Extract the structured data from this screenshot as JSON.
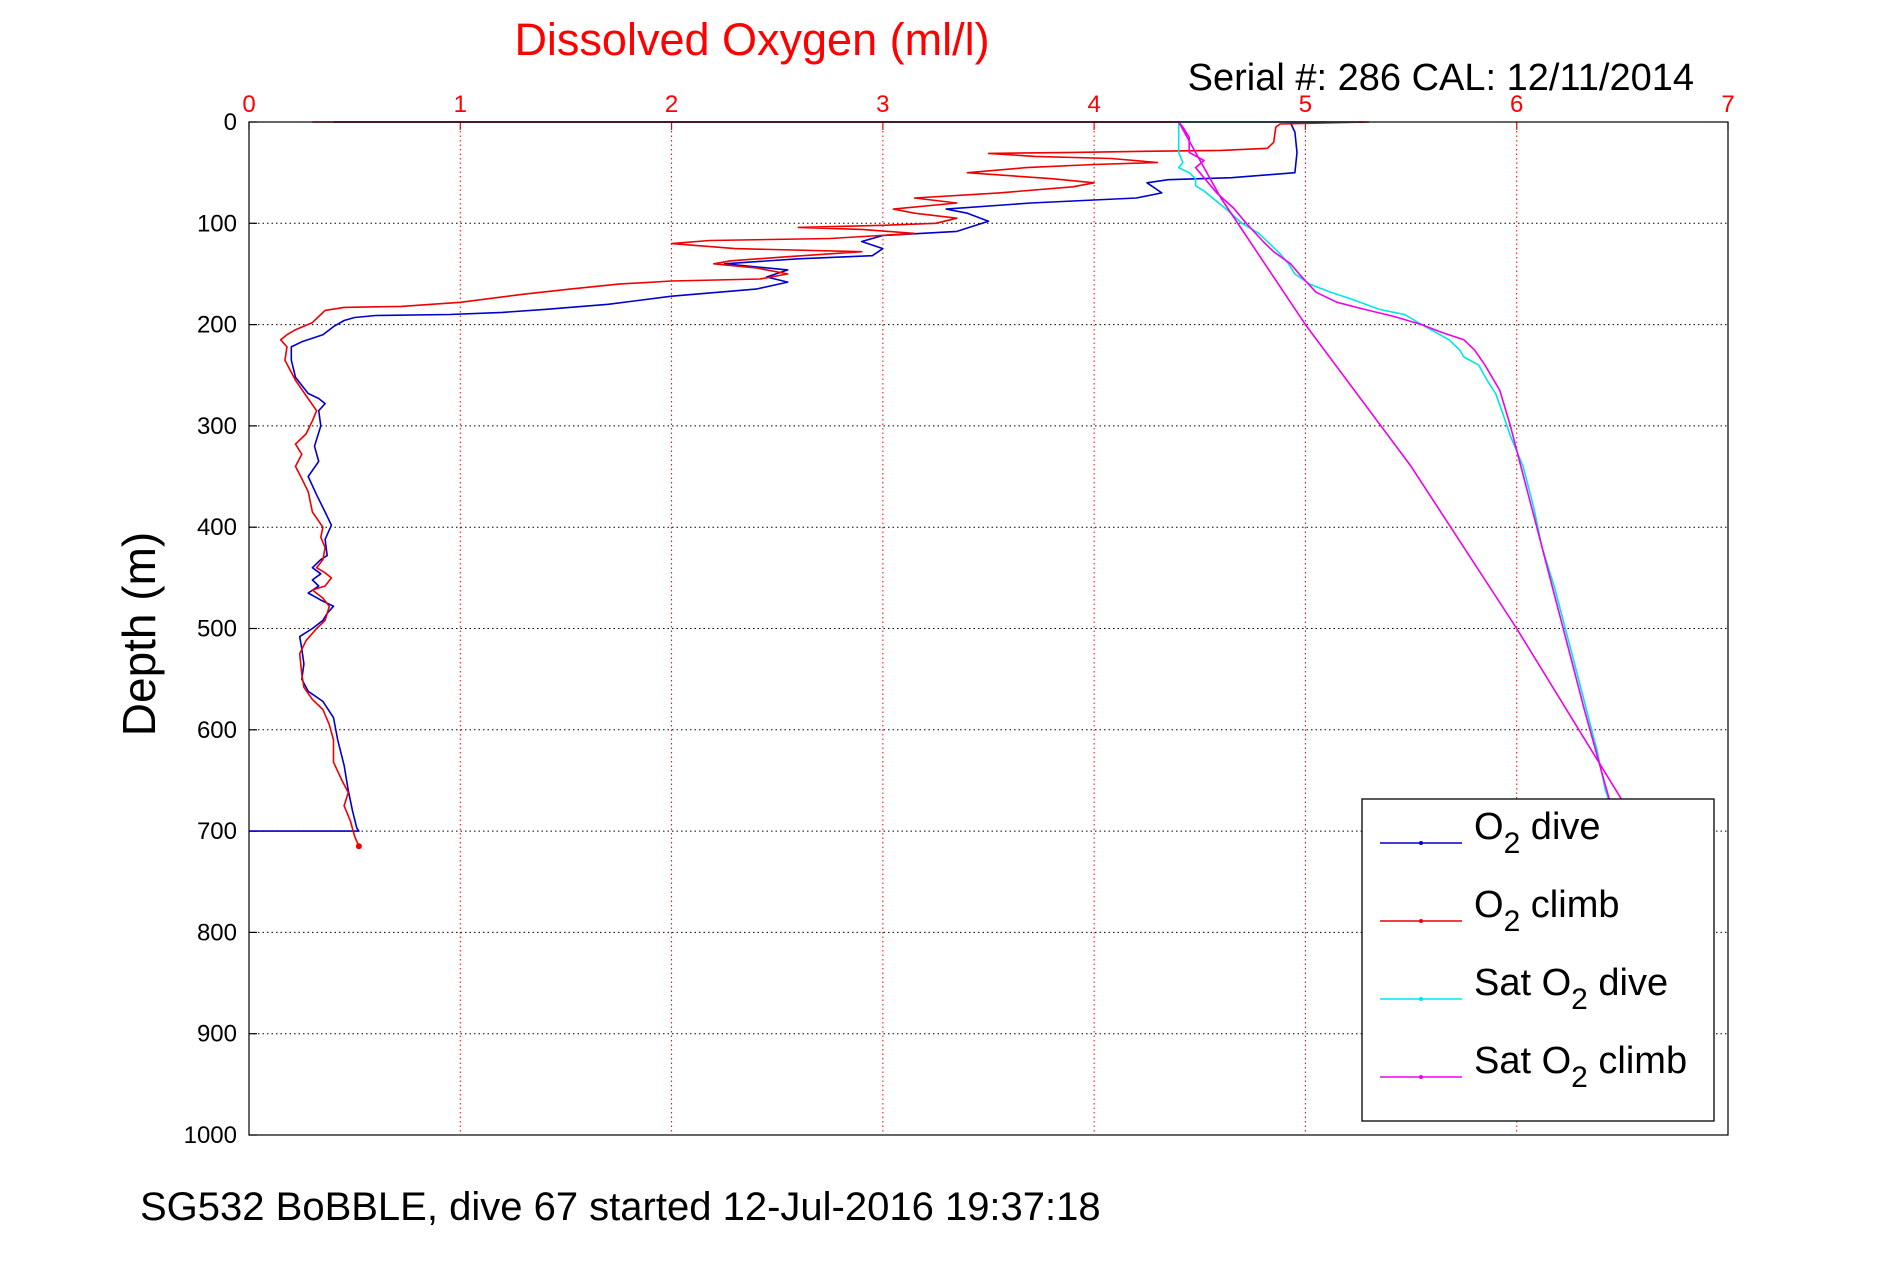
{
  "chart_data": {
    "type": "line",
    "title": "Dissolved Oxygen (ml/l)",
    "subtitle": "Serial #: 286  CAL: 12/11/2014",
    "xlabel": "",
    "ylabel": "Depth (m)",
    "xlim": [
      0,
      7
    ],
    "ylim": [
      0,
      1000
    ],
    "y_reversed": true,
    "x_axis_position": "top",
    "xticks": [
      "0",
      "1",
      "2",
      "3",
      "4",
      "5",
      "6",
      "7"
    ],
    "yticks": [
      "0",
      "100",
      "200",
      "300",
      "400",
      "500",
      "600",
      "700",
      "800",
      "900",
      "1000"
    ],
    "grid": true,
    "legend_placement": "bottom-right",
    "colors": {
      "title": "#ff0000",
      "o2_dive": "#0000cc",
      "o2_climb": "#ee0000",
      "sat_dive": "#00e5e5",
      "sat_climb": "#ee00ee",
      "grid_x": "#ff0000",
      "grid_y": "#000000"
    },
    "series": [
      {
        "name": "O2 dive",
        "legend_label": [
          "O",
          "2",
          " dive"
        ],
        "color": "#0000cc",
        "points": [
          [
            0.4,
            0
          ],
          [
            5.1,
            0
          ],
          [
            4.93,
            1
          ],
          [
            4.95,
            10
          ],
          [
            4.96,
            30
          ],
          [
            4.95,
            50
          ],
          [
            4.65,
            55
          ],
          [
            4.35,
            57
          ],
          [
            4.25,
            60
          ],
          [
            4.32,
            70
          ],
          [
            4.2,
            75
          ],
          [
            3.7,
            80
          ],
          [
            3.3,
            86
          ],
          [
            3.4,
            90
          ],
          [
            3.5,
            98
          ],
          [
            3.35,
            108
          ],
          [
            3.0,
            112
          ],
          [
            2.9,
            118
          ],
          [
            3.0,
            125
          ],
          [
            2.95,
            132
          ],
          [
            2.6,
            135
          ],
          [
            2.25,
            140
          ],
          [
            2.55,
            146
          ],
          [
            2.45,
            153
          ],
          [
            2.55,
            158
          ],
          [
            2.4,
            165
          ],
          [
            2.0,
            172
          ],
          [
            1.7,
            180
          ],
          [
            1.4,
            185
          ],
          [
            1.2,
            188
          ],
          [
            0.95,
            190
          ],
          [
            0.6,
            191
          ],
          [
            0.5,
            193
          ],
          [
            0.45,
            196
          ],
          [
            0.4,
            202
          ],
          [
            0.35,
            210
          ],
          [
            0.25,
            217
          ],
          [
            0.2,
            222
          ],
          [
            0.2,
            235
          ],
          [
            0.22,
            252
          ],
          [
            0.28,
            268
          ],
          [
            0.33,
            273
          ],
          [
            0.36,
            278
          ],
          [
            0.33,
            285
          ],
          [
            0.34,
            300
          ],
          [
            0.31,
            320
          ],
          [
            0.33,
            335
          ],
          [
            0.28,
            350
          ],
          [
            0.32,
            368
          ],
          [
            0.36,
            385
          ],
          [
            0.39,
            398
          ],
          [
            0.36,
            412
          ],
          [
            0.37,
            428
          ],
          [
            0.34,
            432
          ],
          [
            0.3,
            440
          ],
          [
            0.34,
            446
          ],
          [
            0.3,
            452
          ],
          [
            0.33,
            458
          ],
          [
            0.28,
            465
          ],
          [
            0.34,
            472
          ],
          [
            0.4,
            478
          ],
          [
            0.37,
            485
          ],
          [
            0.35,
            492
          ],
          [
            0.3,
            500
          ],
          [
            0.24,
            508
          ],
          [
            0.25,
            520
          ],
          [
            0.26,
            535
          ],
          [
            0.25,
            550
          ],
          [
            0.28,
            562
          ],
          [
            0.35,
            572
          ],
          [
            0.4,
            588
          ],
          [
            0.42,
            610
          ],
          [
            0.45,
            635
          ],
          [
            0.47,
            660
          ],
          [
            0.49,
            680
          ],
          [
            0.51,
            697
          ],
          [
            0.52,
            700
          ],
          [
            0.0,
            700
          ]
        ]
      },
      {
        "name": "O2 climb",
        "legend_label": [
          "O",
          "2",
          " climb"
        ],
        "color": "#ee0000",
        "points": [
          [
            0.52,
            715
          ],
          [
            0.5,
            705
          ],
          [
            0.48,
            690
          ],
          [
            0.45,
            675
          ],
          [
            0.47,
            662
          ],
          [
            0.44,
            650
          ],
          [
            0.4,
            632
          ],
          [
            0.4,
            610
          ],
          [
            0.38,
            595
          ],
          [
            0.35,
            580
          ],
          [
            0.3,
            570
          ],
          [
            0.26,
            558
          ],
          [
            0.25,
            545
          ],
          [
            0.24,
            525
          ],
          [
            0.27,
            512
          ],
          [
            0.32,
            500
          ],
          [
            0.36,
            492
          ],
          [
            0.37,
            485
          ],
          [
            0.38,
            478
          ],
          [
            0.35,
            470
          ],
          [
            0.3,
            462
          ],
          [
            0.36,
            458
          ],
          [
            0.39,
            450
          ],
          [
            0.36,
            445
          ],
          [
            0.32,
            440
          ],
          [
            0.35,
            432
          ],
          [
            0.36,
            420
          ],
          [
            0.34,
            410
          ],
          [
            0.35,
            400
          ],
          [
            0.3,
            385
          ],
          [
            0.28,
            365
          ],
          [
            0.25,
            352
          ],
          [
            0.22,
            340
          ],
          [
            0.25,
            328
          ],
          [
            0.22,
            318
          ],
          [
            0.27,
            308
          ],
          [
            0.3,
            295
          ],
          [
            0.32,
            285
          ],
          [
            0.27,
            270
          ],
          [
            0.22,
            255
          ],
          [
            0.17,
            235
          ],
          [
            0.18,
            222
          ],
          [
            0.15,
            215
          ],
          [
            0.18,
            210
          ],
          [
            0.22,
            205
          ],
          [
            0.3,
            198
          ],
          [
            0.34,
            190
          ],
          [
            0.36,
            186
          ],
          [
            0.45,
            183
          ],
          [
            0.72,
            182
          ],
          [
            1.0,
            178
          ],
          [
            1.3,
            170
          ],
          [
            1.52,
            165
          ],
          [
            1.75,
            160
          ],
          [
            2.0,
            157
          ],
          [
            2.42,
            155
          ],
          [
            2.55,
            150
          ],
          [
            2.4,
            144
          ],
          [
            2.2,
            140
          ],
          [
            2.28,
            137
          ],
          [
            2.55,
            133
          ],
          [
            2.9,
            128
          ],
          [
            2.3,
            125
          ],
          [
            2.0,
            120
          ],
          [
            2.18,
            117
          ],
          [
            2.75,
            115
          ],
          [
            3.15,
            110
          ],
          [
            2.9,
            106
          ],
          [
            2.6,
            104
          ],
          [
            3.0,
            102
          ],
          [
            3.25,
            100
          ],
          [
            3.35,
            95
          ],
          [
            3.15,
            90
          ],
          [
            3.05,
            86
          ],
          [
            3.35,
            80
          ],
          [
            3.15,
            75
          ],
          [
            3.55,
            70
          ],
          [
            3.9,
            64
          ],
          [
            4.0,
            60
          ],
          [
            3.8,
            56
          ],
          [
            3.4,
            50
          ],
          [
            3.68,
            45
          ],
          [
            4.0,
            42
          ],
          [
            4.3,
            40
          ],
          [
            4.08,
            36
          ],
          [
            3.72,
            34
          ],
          [
            3.5,
            31
          ],
          [
            3.9,
            30
          ],
          [
            4.2,
            29
          ],
          [
            4.6,
            28
          ],
          [
            4.82,
            26
          ],
          [
            4.85,
            20
          ],
          [
            4.86,
            5
          ],
          [
            4.88,
            2
          ],
          [
            5.3,
            0
          ],
          [
            0.3,
            0
          ]
        ]
      },
      {
        "name": "Sat O2 dive",
        "legend_label": [
          "Sat O",
          "2",
          " dive"
        ],
        "color": "#00e5e5",
        "points": [
          [
            5.25,
            0
          ],
          [
            4.4,
            0
          ],
          [
            4.4,
            10
          ],
          [
            4.4,
            30
          ],
          [
            4.42,
            40
          ],
          [
            4.4,
            45
          ],
          [
            4.45,
            50
          ],
          [
            4.48,
            56
          ],
          [
            4.48,
            63
          ],
          [
            4.52,
            68
          ],
          [
            4.56,
            75
          ],
          [
            4.62,
            85
          ],
          [
            4.7,
            100
          ],
          [
            4.78,
            110
          ],
          [
            4.83,
            120
          ],
          [
            4.88,
            130
          ],
          [
            4.92,
            140
          ],
          [
            4.95,
            150
          ],
          [
            5.02,
            160
          ],
          [
            5.12,
            168
          ],
          [
            5.22,
            175
          ],
          [
            5.35,
            185
          ],
          [
            5.47,
            190
          ],
          [
            5.55,
            200
          ],
          [
            5.62,
            208
          ],
          [
            5.68,
            215
          ],
          [
            5.73,
            225
          ],
          [
            5.75,
            232
          ],
          [
            5.82,
            240
          ],
          [
            5.86,
            255
          ],
          [
            5.9,
            268
          ],
          [
            5.93,
            285
          ],
          [
            5.97,
            310
          ],
          [
            6.03,
            340
          ],
          [
            6.08,
            380
          ],
          [
            6.12,
            420
          ],
          [
            6.18,
            460
          ],
          [
            6.23,
            500
          ],
          [
            6.28,
            540
          ],
          [
            6.33,
            580
          ],
          [
            6.38,
            620
          ],
          [
            6.42,
            660
          ],
          [
            6.44,
            672
          ]
        ]
      },
      {
        "name": "Sat O2 climb",
        "legend_label": [
          "Sat O",
          "2",
          " climb"
        ],
        "color": "#ee00ee",
        "points": [
          [
            6.44,
            670
          ],
          [
            6.4,
            640
          ],
          [
            6.36,
            610
          ],
          [
            6.32,
            580
          ],
          [
            6.27,
            540
          ],
          [
            6.22,
            500
          ],
          [
            6.17,
            460
          ],
          [
            6.12,
            420
          ],
          [
            6.07,
            380
          ],
          [
            6.02,
            340
          ],
          [
            5.97,
            300
          ],
          [
            5.92,
            265
          ],
          [
            5.85,
            240
          ],
          [
            5.8,
            225
          ],
          [
            5.75,
            215
          ],
          [
            5.65,
            208
          ],
          [
            5.55,
            200
          ],
          [
            5.42,
            192
          ],
          [
            5.28,
            185
          ],
          [
            5.15,
            178
          ],
          [
            5.05,
            168
          ],
          [
            4.97,
            150
          ],
          [
            4.93,
            140
          ],
          [
            4.85,
            128
          ],
          [
            4.8,
            118
          ],
          [
            4.72,
            100
          ],
          [
            4.66,
            85
          ],
          [
            4.58,
            70
          ],
          [
            4.52,
            55
          ],
          [
            4.48,
            45
          ],
          [
            4.52,
            38
          ],
          [
            4.45,
            30
          ],
          [
            4.45,
            15
          ],
          [
            4.42,
            5
          ],
          [
            4.4,
            0
          ],
          [
            4.4,
            0
          ],
          [
            4.6,
            75
          ],
          [
            5.0,
            200
          ],
          [
            5.5,
            340
          ],
          [
            6.0,
            500
          ],
          [
            6.5,
            670
          ]
        ]
      }
    ],
    "footer": "SG532 BoBBLE, dive 67 started 12-Jul-2016 19:37:18"
  }
}
